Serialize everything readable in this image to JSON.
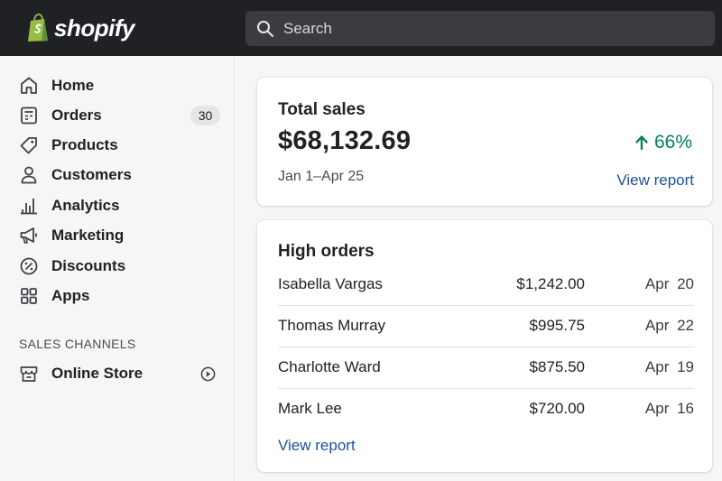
{
  "header": {
    "brand": "shopify",
    "search": {
      "placeholder": "Search",
      "value": ""
    }
  },
  "sidebar": {
    "items": [
      {
        "label": "Home",
        "icon": "home-icon"
      },
      {
        "label": "Orders",
        "icon": "orders-icon",
        "badge": "30"
      },
      {
        "label": "Products",
        "icon": "tag-icon"
      },
      {
        "label": "Customers",
        "icon": "person-icon"
      },
      {
        "label": "Analytics",
        "icon": "bar-chart-icon"
      },
      {
        "label": "Marketing",
        "icon": "megaphone-icon"
      },
      {
        "label": "Discounts",
        "icon": "discount-icon"
      },
      {
        "label": "Apps",
        "icon": "apps-grid-icon"
      }
    ],
    "sales_channels": {
      "heading": "SALES CHANNELS",
      "items": [
        {
          "label": "Online Store",
          "icon": "store-icon",
          "action_icon": "play-circle-icon"
        }
      ]
    }
  },
  "main": {
    "total_sales": {
      "title": "Total sales",
      "amount": "$68,132.69",
      "date_range": "Jan 1–Apr 25",
      "change": "66%",
      "change_icon": "arrow-up-icon",
      "link": "View report"
    },
    "high_orders": {
      "title": "High orders",
      "rows": [
        {
          "name": "Isabella Vargas",
          "amount": "$1,242.00",
          "date": "Apr 20"
        },
        {
          "name": "Thomas Murray",
          "amount": "$995.75",
          "date": "Apr 22"
        },
        {
          "name": "Charlotte Ward",
          "amount": "$875.50",
          "date": "Apr 19"
        },
        {
          "name": "Mark Lee",
          "amount": "$720.00",
          "date": "Apr 16"
        }
      ],
      "link": "View report"
    }
  },
  "colors": {
    "topbar": "#1f2125",
    "search_bg": "#3a3c41",
    "brand_green": "#95bf47",
    "positive": "#008060",
    "link": "#1f5199"
  }
}
